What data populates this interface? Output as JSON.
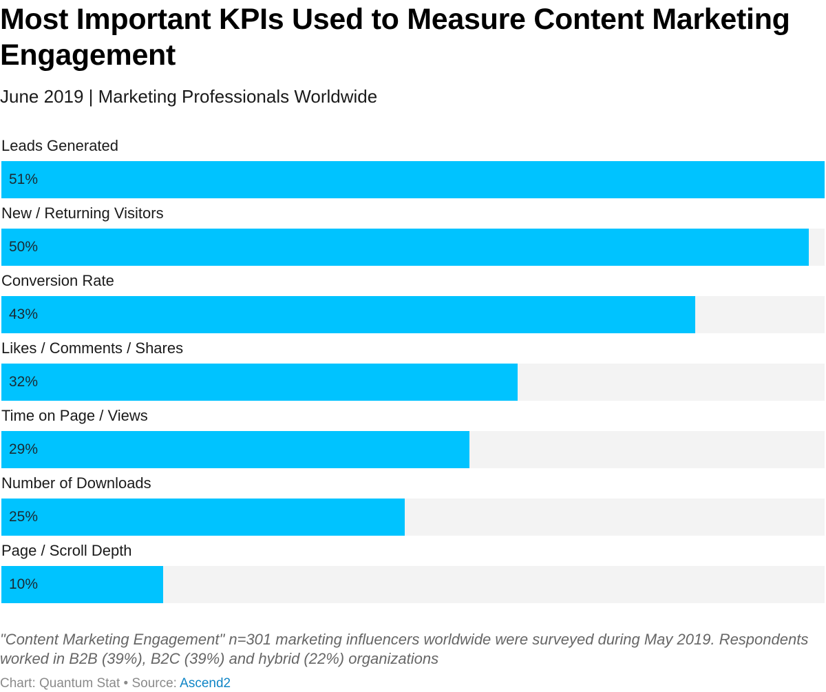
{
  "header": {
    "title": "Most Important KPIs Used to Measure Content Marketing Engagement",
    "subtitle": "June 2019 | Marketing Professionals Worldwide"
  },
  "footer": {
    "note": "\"Content Marketing Engagement\" n=301 marketing influencers worldwide were surveyed during May 2019. Respondents worked in B2B (39%), B2C (39%) and hybrid (22%) organizations",
    "credit_prefix": "Chart: Quantum Stat • Source: ",
    "source_link": "Ascend2"
  },
  "colors": {
    "bar": "#00c3ff",
    "track": "#f3f3f3",
    "link": "#0f85c6"
  },
  "chart_data": {
    "type": "bar",
    "orientation": "horizontal",
    "title": "Most Important KPIs Used to Measure Content Marketing Engagement",
    "subtitle": "June 2019 | Marketing Professionals Worldwide",
    "unit": "%",
    "xlim": [
      0,
      51
    ],
    "categories": [
      "Leads Generated",
      "New / Returning Visitors",
      "Conversion Rate",
      "Likes / Comments / Shares",
      "Time on Page / Views",
      "Number of Downloads",
      "Page / Scroll Depth"
    ],
    "values": [
      51,
      50,
      43,
      32,
      29,
      25,
      10
    ],
    "value_labels": [
      "51%",
      "50%",
      "43%",
      "32%",
      "29%",
      "25%",
      "10%"
    ]
  }
}
